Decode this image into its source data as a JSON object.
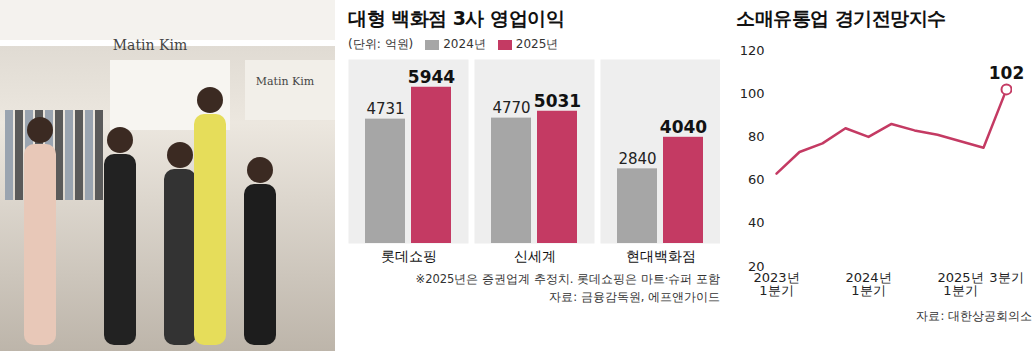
{
  "photo": {
    "signs": [
      "Matin Kim",
      "Matin Kim"
    ]
  },
  "chart_data": [
    {
      "type": "bar",
      "title": "대형 백화점 3사 영업이익",
      "unit": "(단위: 억원)",
      "categories": [
        "롯데쇼핑",
        "신세계",
        "현대백화점"
      ],
      "series": [
        {
          "name": "2024년",
          "color": "#a6a6a6",
          "values": [
            4731,
            4770,
            2840
          ]
        },
        {
          "name": "2025년",
          "color": "#c43a63",
          "values": [
            5944,
            5031,
            4040
          ]
        }
      ],
      "ylim": [
        0,
        7000
      ],
      "data_labels": true,
      "tick_labels": "x",
      "legend": "top",
      "notes": [
        "※2025년은 증권업계 추정치. 롯데쇼핑은 마트·슈퍼 포함",
        "자료: 금융감독원, 에프앤가이드"
      ]
    },
    {
      "type": "line",
      "title": "소매유통업 경기전망지수",
      "categories": [
        "2023년\n1분기",
        null,
        null,
        null,
        "2024년\n1분기",
        null,
        null,
        null,
        "2025년\n1분기",
        null,
        "3분기"
      ],
      "series": [
        {
          "name": "소매유통업 경기전망지수",
          "color": "#c43a63",
          "values": [
            63,
            73,
            77,
            84,
            80,
            86,
            83,
            81,
            78,
            75,
            102
          ]
        }
      ],
      "ylim": [
        20,
        120
      ],
      "yticks": [
        20,
        40,
        60,
        80,
        100,
        120
      ],
      "grid": false,
      "annotations": [
        {
          "category_index": 10,
          "value": 102,
          "text": "102"
        }
      ],
      "notes": [
        "자료: 대한상공회의소"
      ]
    }
  ]
}
